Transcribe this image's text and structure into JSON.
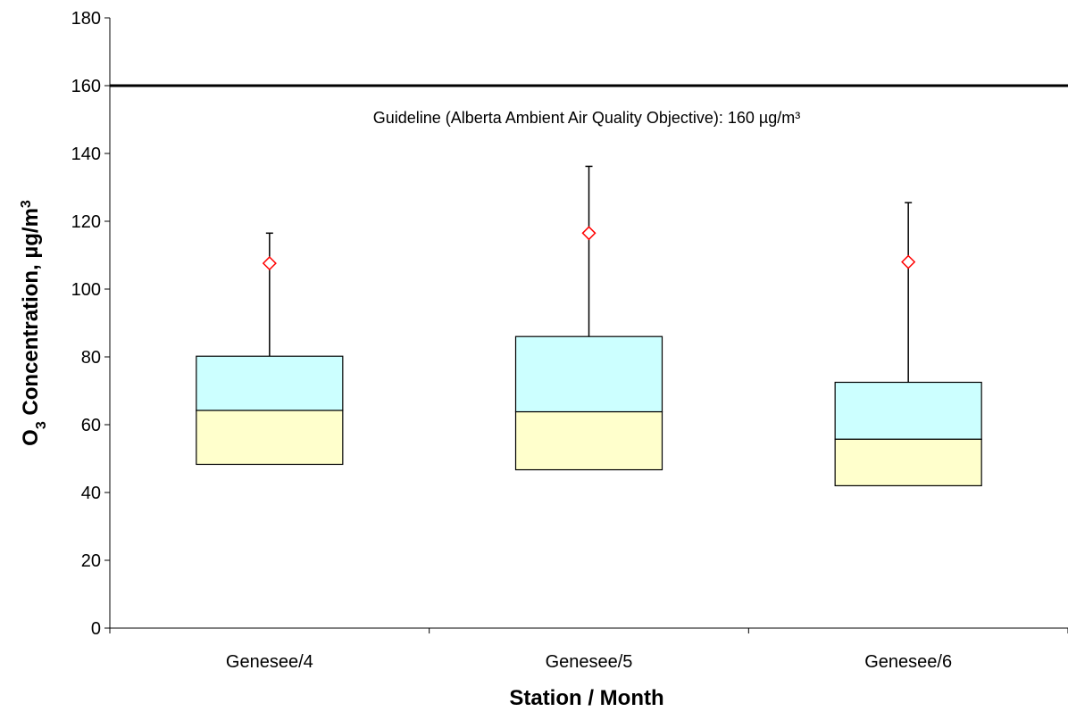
{
  "chart_data": {
    "type": "box",
    "xlabel": "Station / Month",
    "ylabel": "Concentration, µg/m",
    "ylabel_parts": {
      "molecule": "O",
      "subscript": "3",
      "rest": " Concentration, µg/m",
      "superscript": "3"
    },
    "ylim": [
      0,
      180
    ],
    "yticks": [
      0,
      20,
      40,
      60,
      80,
      100,
      120,
      140,
      160,
      180
    ],
    "grid": false,
    "categories": [
      "Genesee/4",
      "Genesee/5",
      "Genesee/6"
    ],
    "boxes": [
      {
        "category": "Genesee/4",
        "q1": 48.3,
        "median": 64.2,
        "q3": 80.2,
        "whisker_high": 116.5,
        "max": 107.6
      },
      {
        "category": "Genesee/5",
        "q1": 46.7,
        "median": 63.8,
        "q3": 86.0,
        "whisker_high": 136.2,
        "max": 116.5
      },
      {
        "category": "Genesee/6",
        "q1": 42.0,
        "median": 55.7,
        "q3": 72.5,
        "whisker_high": 125.5,
        "max": 108.0
      }
    ],
    "reference_line": {
      "value": 160,
      "label": "Guideline (Alberta Ambient Air Quality Objective): 160 µg/m³"
    },
    "colors": {
      "upper_box": "#ccffff",
      "lower_box": "#ffffcc",
      "marker": "#ff0000",
      "line": "#000000"
    }
  }
}
